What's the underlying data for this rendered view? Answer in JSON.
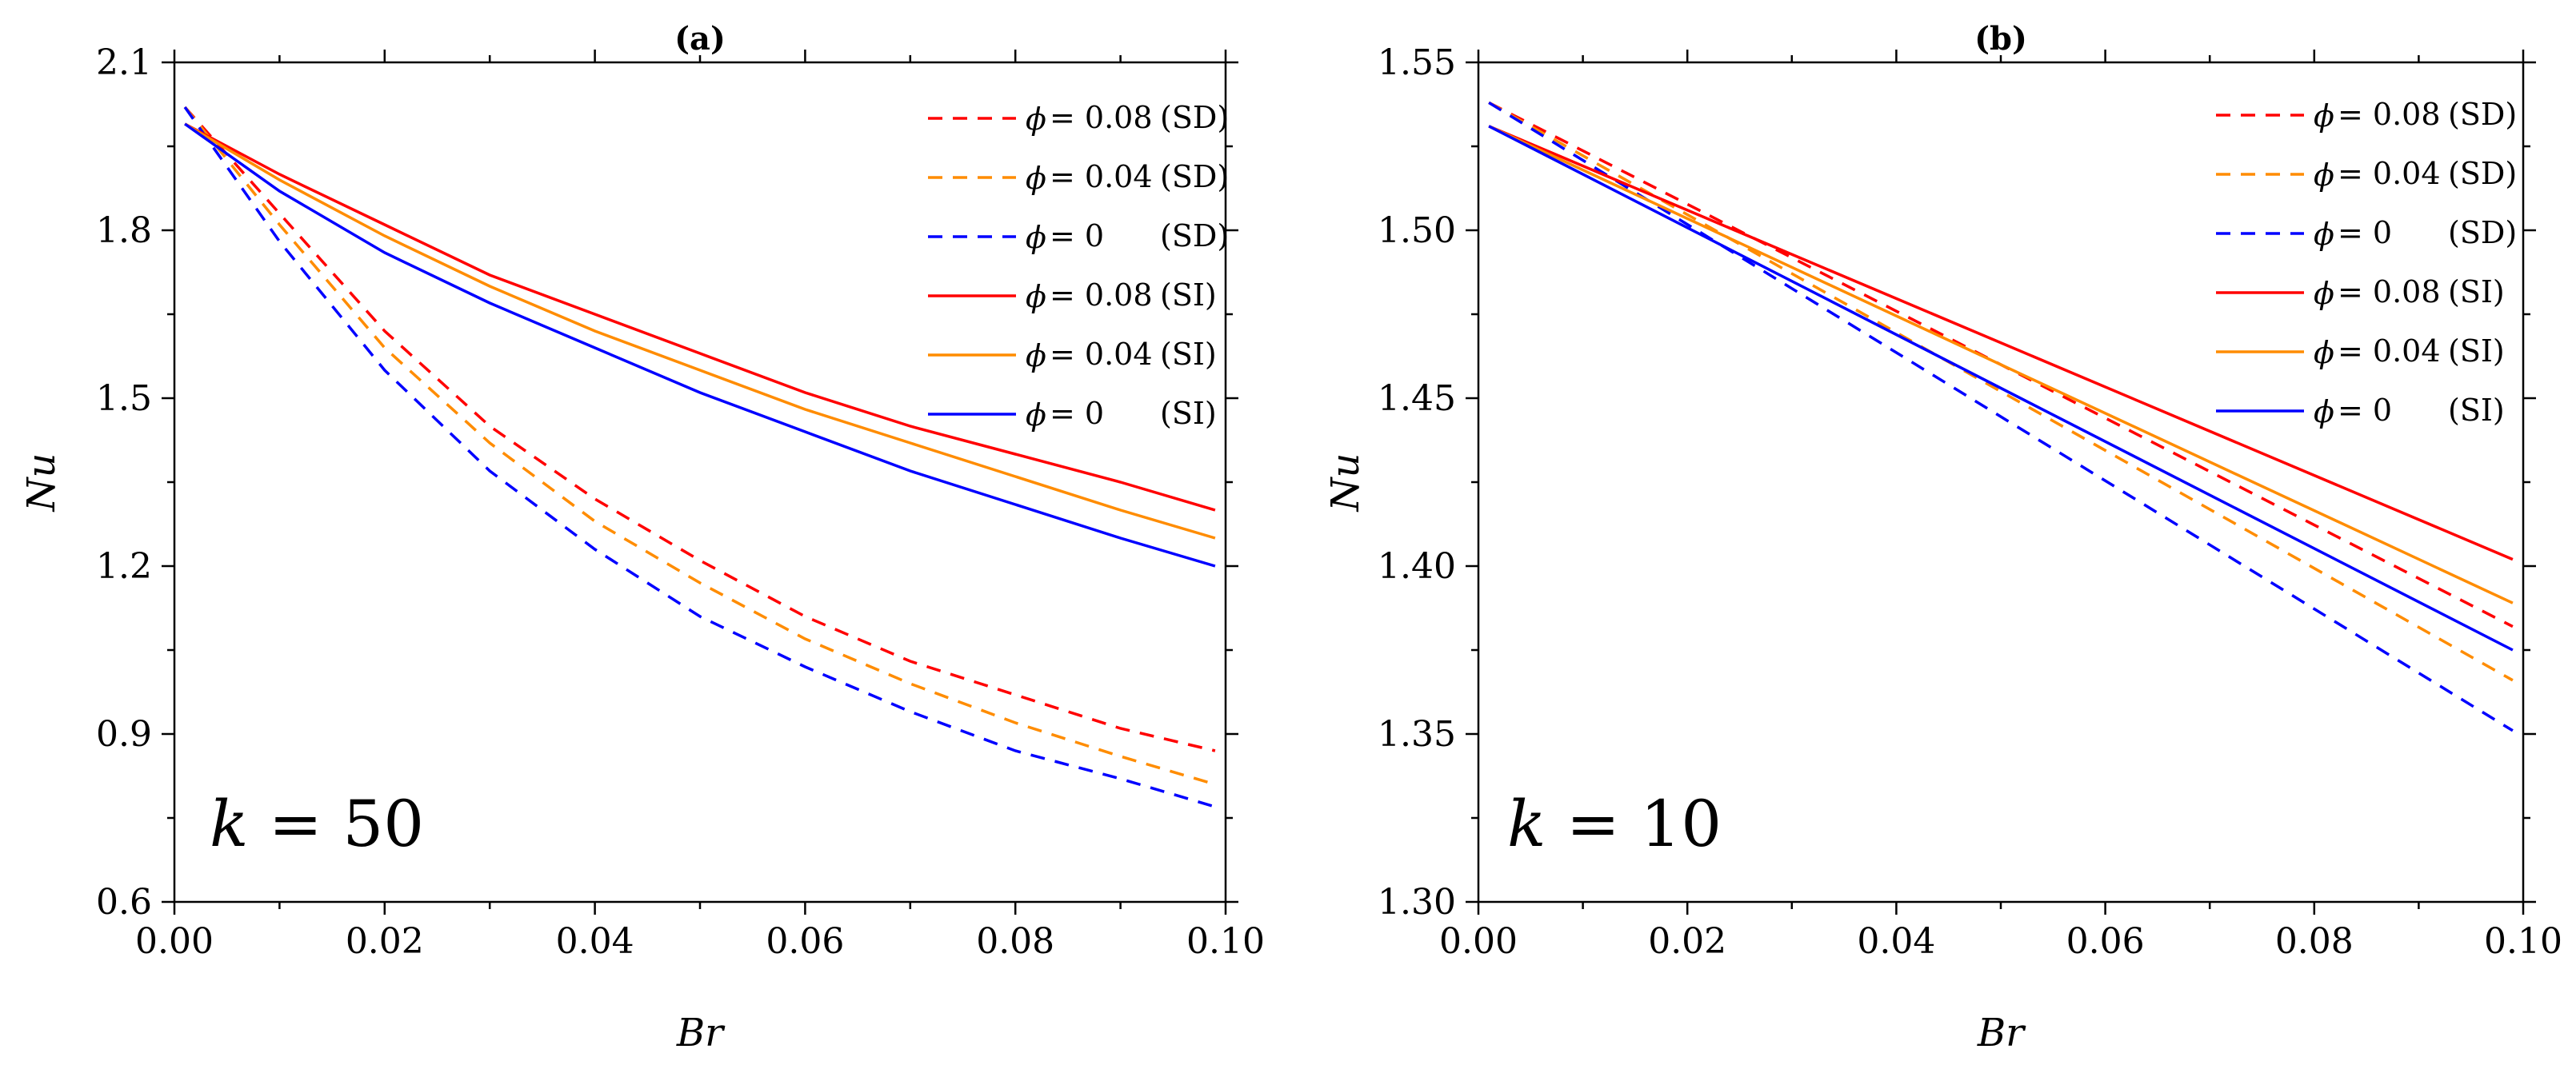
{
  "colors": {
    "phi_0_08": "#ff0000",
    "phi_0_04": "#ff8c00",
    "phi_0": "#0000ff"
  },
  "chart_data": [
    {
      "type": "line",
      "title": "(a)",
      "xlabel": "Br",
      "ylabel": "Nu",
      "annotation": {
        "var": "k",
        "rest": " = 50"
      },
      "xlim": [
        0,
        0.1
      ],
      "ylim": [
        0.6,
        2.1
      ],
      "xticks": [
        0.0,
        0.02,
        0.04,
        0.06,
        0.08,
        0.1
      ],
      "xtick_labels": [
        "0.00",
        "0.02",
        "0.04",
        "0.06",
        "0.08",
        "0.10"
      ],
      "yticks": [
        0.6,
        0.9,
        1.2,
        1.5,
        1.8,
        2.1
      ],
      "ytick_labels": [
        "0.6",
        "0.9",
        "1.2",
        "1.5",
        "1.8",
        "2.1"
      ],
      "grid": false,
      "legend_position": "top-right",
      "x": [
        0.001,
        0.01,
        0.02,
        0.03,
        0.04,
        0.05,
        0.06,
        0.07,
        0.08,
        0.09,
        0.099
      ],
      "series": [
        {
          "name": "0.08 (SD)",
          "legend_value": "= 0.08",
          "legend_tag": "(SD)",
          "color": "#ff0000",
          "dash": true,
          "values": [
            2.02,
            1.83,
            1.62,
            1.45,
            1.32,
            1.21,
            1.11,
            1.03,
            0.97,
            0.91,
            0.87
          ]
        },
        {
          "name": "0.04 (SD)",
          "legend_value": "= 0.04",
          "legend_tag": "(SD)",
          "color": "#ff8c00",
          "dash": true,
          "values": [
            2.02,
            1.81,
            1.59,
            1.42,
            1.28,
            1.17,
            1.07,
            0.99,
            0.92,
            0.86,
            0.81
          ]
        },
        {
          "name": "0 (SD)",
          "legend_value": "= 0",
          "legend_tag": "(SD)",
          "color": "#0000ff",
          "dash": true,
          "values": [
            2.02,
            1.78,
            1.55,
            1.37,
            1.23,
            1.11,
            1.02,
            0.94,
            0.87,
            0.82,
            0.77
          ]
        },
        {
          "name": "0.08 (SI)",
          "legend_value": "= 0.08",
          "legend_tag": "(SI)",
          "color": "#ff0000",
          "dash": false,
          "values": [
            1.99,
            1.9,
            1.81,
            1.72,
            1.65,
            1.58,
            1.51,
            1.45,
            1.4,
            1.35,
            1.3
          ]
        },
        {
          "name": "0.04 (SI)",
          "legend_value": "= 0.04",
          "legend_tag": "(SI)",
          "color": "#ff8c00",
          "dash": false,
          "values": [
            1.99,
            1.89,
            1.79,
            1.7,
            1.62,
            1.55,
            1.48,
            1.42,
            1.36,
            1.3,
            1.25
          ]
        },
        {
          "name": "0 (SI)",
          "legend_value": "= 0",
          "legend_tag": "(SI)",
          "color": "#0000ff",
          "dash": false,
          "values": [
            1.99,
            1.87,
            1.76,
            1.67,
            1.59,
            1.51,
            1.44,
            1.37,
            1.31,
            1.25,
            1.2
          ]
        }
      ]
    },
    {
      "type": "line",
      "title": "(b)",
      "xlabel": "Br",
      "ylabel": "Nu",
      "annotation": {
        "var": "k",
        "rest": " = 10"
      },
      "xlim": [
        0,
        0.1
      ],
      "ylim": [
        1.3,
        1.55
      ],
      "xticks": [
        0.0,
        0.02,
        0.04,
        0.06,
        0.08,
        0.1
      ],
      "xtick_labels": [
        "0.00",
        "0.02",
        "0.04",
        "0.06",
        "0.08",
        "0.10"
      ],
      "yticks": [
        1.3,
        1.35,
        1.4,
        1.45,
        1.5,
        1.55
      ],
      "ytick_labels": [
        "1.30",
        "1.35",
        "1.40",
        "1.45",
        "1.50",
        "1.55"
      ],
      "grid": false,
      "legend_position": "top-right",
      "x": [
        0.001,
        0.099
      ],
      "series": [
        {
          "name": "0.08 (SD)",
          "legend_value": "= 0.08",
          "legend_tag": "(SD)",
          "color": "#ff0000",
          "dash": true,
          "values": [
            1.538,
            1.382
          ]
        },
        {
          "name": "0.04 (SD)",
          "legend_value": "= 0.04",
          "legend_tag": "(SD)",
          "color": "#ff8c00",
          "dash": true,
          "values": [
            1.538,
            1.366
          ]
        },
        {
          "name": "0 (SD)",
          "legend_value": "= 0",
          "legend_tag": "(SD)",
          "color": "#0000ff",
          "dash": true,
          "values": [
            1.538,
            1.351
          ]
        },
        {
          "name": "0.08 (SI)",
          "legend_value": "= 0.08",
          "legend_tag": "(SI)",
          "color": "#ff0000",
          "dash": false,
          "values": [
            1.531,
            1.402
          ]
        },
        {
          "name": "0.04 (SI)",
          "legend_value": "= 0.04",
          "legend_tag": "(SI)",
          "color": "#ff8c00",
          "dash": false,
          "values": [
            1.531,
            1.389
          ]
        },
        {
          "name": "0 (SI)",
          "legend_value": "= 0",
          "legend_tag": "(SI)",
          "color": "#0000ff",
          "dash": false,
          "values": [
            1.531,
            1.375
          ]
        }
      ]
    }
  ]
}
